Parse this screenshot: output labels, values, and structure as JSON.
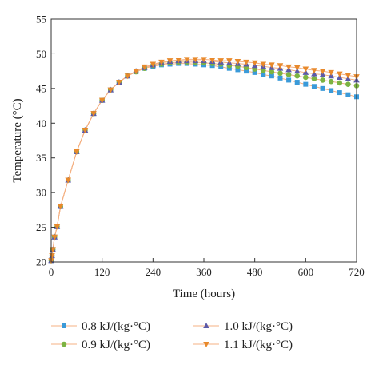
{
  "chart_data": {
    "type": "line",
    "title": "",
    "xlabel": "Time (hours)",
    "ylabel": "Temperature (°C)",
    "xlim": [
      0,
      720
    ],
    "ylim": [
      20,
      55
    ],
    "xticks": [
      0,
      120,
      240,
      360,
      480,
      600,
      720
    ],
    "yticks": [
      20,
      25,
      30,
      35,
      40,
      45,
      50,
      55
    ],
    "grid": false,
    "legend_position": "bottom",
    "x": [
      0,
      2,
      4,
      8,
      14,
      22,
      40,
      60,
      80,
      100,
      120,
      140,
      160,
      180,
      200,
      220,
      240,
      260,
      280,
      300,
      320,
      340,
      360,
      380,
      400,
      420,
      440,
      460,
      480,
      500,
      520,
      540,
      560,
      580,
      600,
      620,
      640,
      660,
      680,
      700,
      720
    ],
    "series": [
      {
        "name": "0.8 kJ/(kg·°C)",
        "color": "#3a9ad9",
        "marker": "square",
        "values": [
          20.2,
          20.9,
          21.8,
          23.6,
          25.1,
          28.0,
          31.8,
          35.9,
          39.0,
          41.4,
          43.3,
          44.8,
          45.9,
          46.8,
          47.4,
          47.9,
          48.2,
          48.4,
          48.5,
          48.6,
          48.6,
          48.5,
          48.4,
          48.3,
          48.1,
          47.9,
          47.7,
          47.5,
          47.3,
          47.0,
          46.8,
          46.5,
          46.2,
          45.9,
          45.6,
          45.3,
          45.0,
          44.7,
          44.4,
          44.1,
          43.8
        ]
      },
      {
        "name": "0.9 kJ/(kg·°C)",
        "color": "#7cb342",
        "marker": "circle",
        "values": [
          20.2,
          20.9,
          21.8,
          23.6,
          25.1,
          28.0,
          31.8,
          35.9,
          39.0,
          41.4,
          43.3,
          44.8,
          45.9,
          46.8,
          47.4,
          47.9,
          48.3,
          48.5,
          48.7,
          48.8,
          48.8,
          48.8,
          48.7,
          48.6,
          48.5,
          48.3,
          48.2,
          48.0,
          47.8,
          47.6,
          47.4,
          47.2,
          47.0,
          46.8,
          46.6,
          46.4,
          46.2,
          46.0,
          45.8,
          45.6,
          45.4
        ]
      },
      {
        "name": "1.0 kJ/(kg·°C)",
        "color": "#5c5aa8",
        "marker": "triangle-up",
        "values": [
          20.2,
          20.9,
          21.8,
          23.6,
          25.1,
          28.0,
          31.8,
          35.9,
          39.0,
          41.4,
          43.3,
          44.8,
          45.9,
          46.8,
          47.5,
          48.0,
          48.4,
          48.7,
          48.9,
          49.0,
          49.0,
          49.0,
          49.0,
          48.9,
          48.8,
          48.7,
          48.6,
          48.5,
          48.3,
          48.2,
          48.0,
          47.9,
          47.7,
          47.5,
          47.3,
          47.1,
          47.0,
          46.8,
          46.6,
          46.4,
          46.2
        ]
      },
      {
        "name": "1.1 kJ/(kg·°C)",
        "color": "#e8892b",
        "marker": "triangle-down",
        "values": [
          20.2,
          20.9,
          21.8,
          23.6,
          25.1,
          28.0,
          31.8,
          35.9,
          39.0,
          41.4,
          43.3,
          44.8,
          45.9,
          46.8,
          47.5,
          48.1,
          48.5,
          48.8,
          49.0,
          49.1,
          49.2,
          49.2,
          49.2,
          49.1,
          49.0,
          49.0,
          48.9,
          48.8,
          48.7,
          48.5,
          48.4,
          48.3,
          48.1,
          48.0,
          47.8,
          47.6,
          47.5,
          47.3,
          47.1,
          46.9,
          46.7
        ]
      }
    ],
    "legend_labels": {
      "s0": "0.8 kJ/(kg·°C)",
      "s1": "0.9 kJ/(kg·°C)",
      "s2": "1.0 kJ/(kg·°C)",
      "s3": "1.1 kJ/(kg·°C)"
    },
    "curve_color": "#f4b183"
  }
}
